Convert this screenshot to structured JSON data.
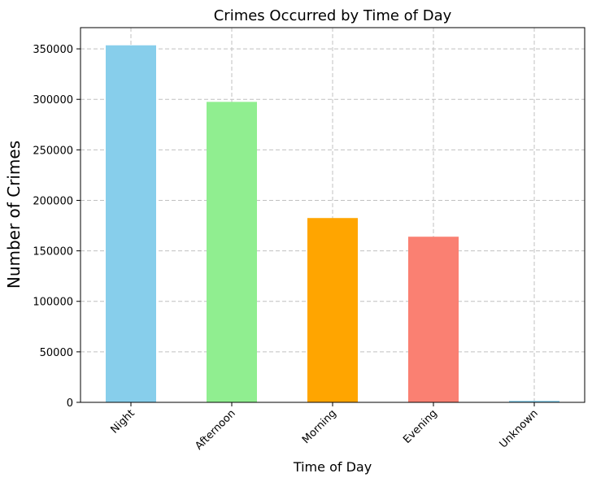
{
  "chart_data": {
    "type": "bar",
    "title": "Crimes Occurred by Time of Day",
    "xlabel": "Time of Day",
    "ylabel": "Number of Crimes",
    "categories": [
      "Night",
      "Afternoon",
      "Morning",
      "Evening",
      "Unknown"
    ],
    "values": [
      353500,
      297500,
      182500,
      164000,
      1500
    ],
    "colors": [
      "#87ceeb",
      "#90ee90",
      "#ffa500",
      "#fa8072",
      "#87ceeb"
    ],
    "ylim": [
      0,
      371000
    ],
    "yticks": [
      0,
      50000,
      100000,
      150000,
      200000,
      250000,
      300000,
      350000
    ],
    "ytick_labels": [
      "0",
      "50000",
      "100000",
      "150000",
      "200000",
      "250000",
      "300000",
      "350000"
    ],
    "grid": true,
    "grid_style": "dashed",
    "xtick_rotation_deg": 45,
    "legend": "none"
  }
}
